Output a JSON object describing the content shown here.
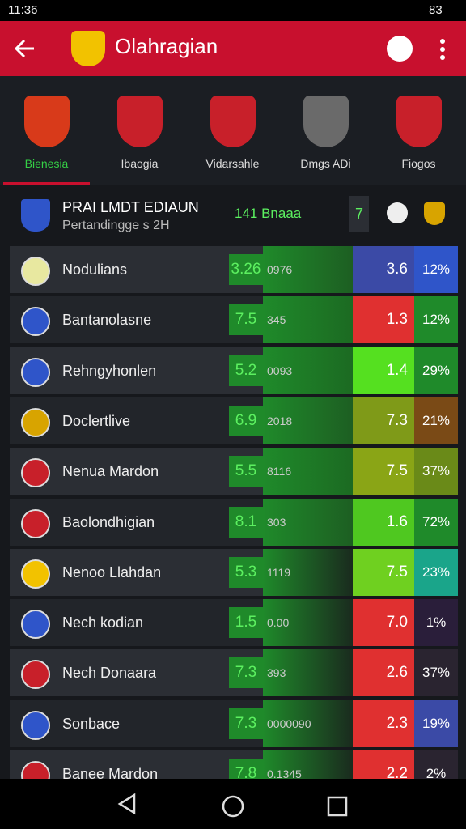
{
  "status_bar": {
    "time": "11:36",
    "battery": "83"
  },
  "app_bar": {
    "title": "Olahragian"
  },
  "tabs": [
    {
      "label": "Bienesia",
      "active": true
    },
    {
      "label": "Ibaogia",
      "active": false
    },
    {
      "label": "Vidarsahle",
      "active": false
    },
    {
      "label": "Dmgs ADi",
      "active": false
    },
    {
      "label": "Fiogos",
      "active": false
    }
  ],
  "summary": {
    "title": "PRAI LMDT EDIAUN",
    "subtitle": "Pertandingge s 2H",
    "score": "141 Bnaaa",
    "badge": "7"
  },
  "table": {
    "rows": [
      {
        "name": "Nodulians",
        "score": "3.26",
        "code": "0976",
        "value": "3.6",
        "percent": "12%",
        "value_color": "#3b4aa6",
        "percent_color": "#2f55c9",
        "bar": "#1d5e22"
      },
      {
        "name": "Bantanolasne",
        "score": "7.5",
        "code": "345",
        "value": "1.3",
        "percent": "12%",
        "value_color": "#e03030",
        "percent_color": "#1f8a2a",
        "bar": "#1c6a22"
      },
      {
        "name": "Rehngyhonlen",
        "score": "5.2",
        "code": "0093",
        "value": "1.4",
        "percent": "29%",
        "value_color": "#55e020",
        "percent_color": "#1f8a2a",
        "bar": "#1c6a22"
      },
      {
        "name": "Doclertlive",
        "score": "6.9",
        "code": "2018",
        "value": "7.3",
        "percent": "21%",
        "value_color": "#7f9a18",
        "percent_color": "#7a4a16",
        "bar": "#1d5e22"
      },
      {
        "name": "Nenua Mardon",
        "score": "5.5",
        "code": "8116",
        "value": "7.5",
        "percent": "37%",
        "value_color": "#8aa516",
        "percent_color": "#6a8a18",
        "bar": "#1c6a22"
      },
      {
        "name": "Baolondhigian",
        "score": "8.1",
        "code": "303",
        "value": "1.6",
        "percent": "72%",
        "value_color": "#4fc820",
        "percent_color": "#1f8a2a",
        "bar": "#1d5e22"
      },
      {
        "name": "Nenoo Llahdan",
        "score": "5.3",
        "code": "1119",
        "value": "7.5",
        "percent": "23%",
        "value_color": "#6fd020",
        "percent_color": "#1aa58a",
        "bar": "#1a2a1e"
      },
      {
        "name": "Nech kodian",
        "score": "1.5",
        "code": "0.00",
        "value": "7.0",
        "percent": "1%",
        "value_color": "#e03030",
        "percent_color": "#2a1e3a",
        "bar": "#1a2a1e"
      },
      {
        "name": "Nech Donaara",
        "score": "7.3",
        "code": "393",
        "value": "2.6",
        "percent": "37%",
        "value_color": "#e03030",
        "percent_color": "#2a2430",
        "bar": "#1a2a1e"
      },
      {
        "name": "Sonbace",
        "score": "7.3",
        "code": "0000090",
        "value": "2.3",
        "percent": "19%",
        "value_color": "#e03030",
        "percent_color": "#3b4aa6",
        "bar": "#1a2a1e"
      },
      {
        "name": "Banee Mardon",
        "score": "7.8",
        "code": "0.1345",
        "value": "2.2",
        "percent": "2%",
        "value_color": "#e03030",
        "percent_color": "#2a2430",
        "bar": "#1a2a1e"
      }
    ]
  }
}
